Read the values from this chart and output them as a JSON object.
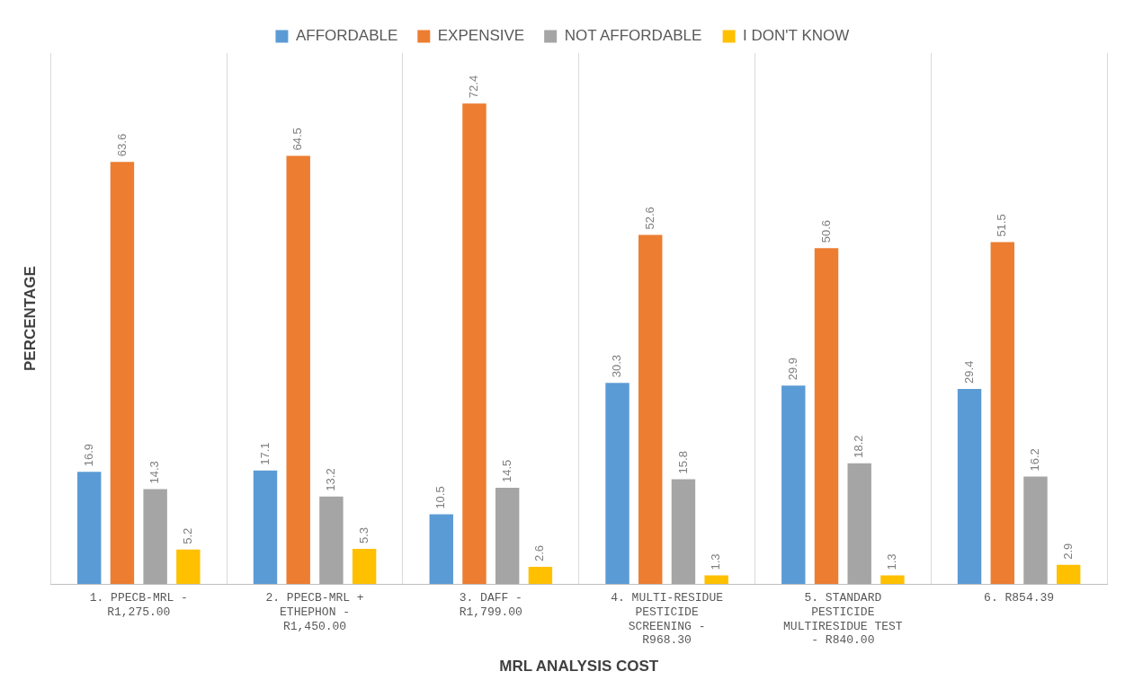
{
  "chart_data": {
    "type": "bar",
    "xlabel": "MRL ANALYSIS COST",
    "ylabel": "PERCENTAGE",
    "categories": [
      "1. PPECB-MRL - R1,275.00",
      "2. PPECB-MRL + ETHEPHON - R1,450.00",
      "3. DAFF - R1,799.00",
      "4. MULTI-RESIDUE PESTICIDE SCREENING - R968.30",
      "5. STANDARD PESTICIDE MULTIRESIDUE TEST - R840.00",
      "6. R854.39"
    ],
    "series": [
      {
        "name": "AFFORDABLE",
        "color": "#5b9bd5",
        "values": [
          16.9,
          17.1,
          10.5,
          30.3,
          29.9,
          29.4
        ]
      },
      {
        "name": "EXPENSIVE",
        "color": "#ed7d31",
        "values": [
          63.6,
          64.5,
          72.4,
          52.6,
          50.6,
          51.5
        ]
      },
      {
        "name": "NOT AFFORDABLE",
        "color": "#a5a5a5",
        "values": [
          14.3,
          13.2,
          14.5,
          15.8,
          18.2,
          16.2
        ]
      },
      {
        "name": "I DON'T KNOW",
        "color": "#ffc000",
        "values": [
          5.2,
          5.3,
          2.6,
          1.3,
          1.3,
          2.9
        ]
      }
    ],
    "data_labels": true,
    "grid": "x",
    "legend": "top"
  }
}
